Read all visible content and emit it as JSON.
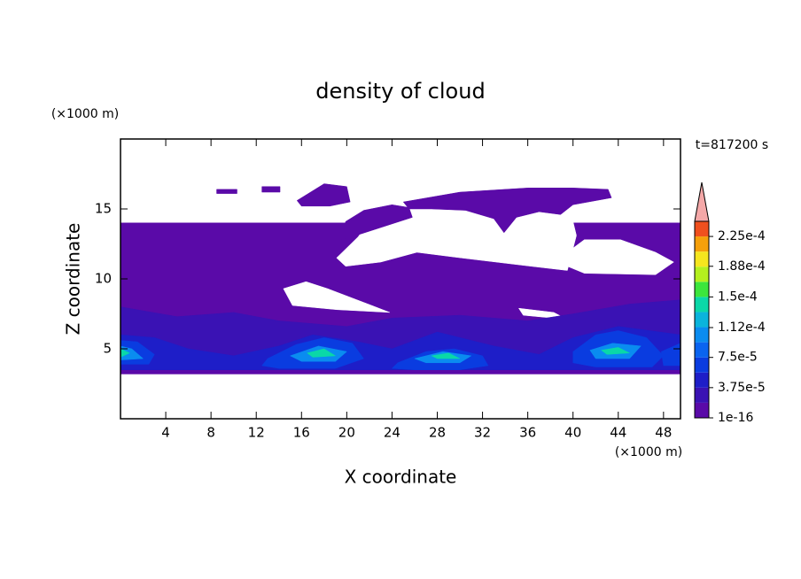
{
  "chart_data": {
    "type": "contour",
    "title": "density of cloud",
    "xlabel": "X coordinate",
    "ylabel": "Z coordinate",
    "xunit": "(×1000 m)",
    "yunit": "(×1000 m)",
    "time_label": "t=817200 s",
    "xlim": [
      0,
      49.5
    ],
    "ylim": [
      0,
      20
    ],
    "xticks": [
      4,
      8,
      12,
      16,
      20,
      24,
      28,
      32,
      36,
      40,
      44,
      48
    ],
    "yticks": [
      5,
      10,
      15
    ],
    "background": "#ffffff",
    "colorbar": {
      "levels": [
        1e-16,
        1.875e-05,
        3.75e-05,
        5.625e-05,
        7.5e-05,
        9.375e-05,
        0.0001125,
        0.00013125,
        0.00015,
        0.00016875,
        0.0001875,
        0.00020625,
        0.000225,
        0.00024375
      ],
      "colors": [
        "#5a0aa8",
        "#3a12b4",
        "#1e1ec8",
        "#0a3ce0",
        "#0a64f0",
        "#0a8cf0",
        "#0ab4dc",
        "#0ad8a8",
        "#3ce63c",
        "#b4f01e",
        "#f5e61e",
        "#f5a00a",
        "#f0501e"
      ],
      "extend_color": "#f4a8a8",
      "ticks": [
        {
          "value": 1e-16,
          "label": "1e-16"
        },
        {
          "value": 3.75e-05,
          "label": "3.75e-5"
        },
        {
          "value": 7.5e-05,
          "label": "7.5e-5"
        },
        {
          "value": 0.000112,
          "label": "1.12e-4"
        },
        {
          "value": 0.00015,
          "label": "1.5e-4"
        },
        {
          "value": 0.000188,
          "label": "1.88e-4"
        },
        {
          "value": 0.000225,
          "label": "2.25e-4"
        }
      ]
    },
    "regions": [
      {
        "value": 1e-16,
        "x": [
          0,
          49.5,
          49.5,
          0
        ],
        "z": [
          3.2,
          3.2,
          14,
          14
        ]
      },
      {
        "value": null,
        "x": [
          19.1,
          21,
          22,
          40,
          40.3,
          39.5,
          36.3,
          33.2,
          30.1,
          26.2,
          23,
          19.9
        ],
        "z": [
          11.5,
          13,
          14.1,
          14.1,
          13.1,
          10.6,
          10.9,
          11.2,
          11.5,
          11.9,
          11.2,
          10.9
        ]
      },
      {
        "value": null,
        "x": [
          14.4,
          16.4,
          18.3,
          22.2,
          23.8,
          19.1,
          15.2
        ],
        "z": [
          9.3,
          9.8,
          9.3,
          8.1,
          7.6,
          7.8,
          8.1
        ]
      },
      {
        "value": null,
        "x": [
          39.5,
          41,
          44.2,
          47.3,
          48.9,
          47.3,
          41,
          39.5
        ],
        "z": [
          11.9,
          12.8,
          12.8,
          11.9,
          11.2,
          10.3,
          10.4,
          10.9
        ]
      },
      {
        "value": null,
        "x": [
          35.2,
          38.3,
          39.5,
          35.6
        ],
        "z": [
          7.9,
          7.6,
          7.1,
          7.4
        ]
      },
      {
        "value": 1e-16,
        "x": [
          8.5,
          10.3,
          10.3,
          8.5
        ],
        "z": [
          16.1,
          16.1,
          16.4,
          16.4
        ]
      },
      {
        "value": 1e-16,
        "x": [
          12.5,
          14.1,
          14.1,
          12.5
        ],
        "z": [
          16.2,
          16.2,
          16.6,
          16.6
        ]
      },
      {
        "value": 1e-16,
        "x": [
          15.6,
          18,
          20,
          20.3,
          18.5,
          16
        ],
        "z": [
          15.6,
          16.8,
          16.6,
          15.5,
          15.2,
          15.2
        ]
      },
      {
        "value": 1e-16,
        "x": [
          19.9,
          21.5,
          24,
          25.5,
          25.8,
          23.5,
          21.2,
          19.5
        ],
        "z": [
          14.1,
          14.9,
          15.3,
          15.1,
          14.4,
          13.8,
          13.2,
          12.8
        ]
      },
      {
        "value": 1e-16,
        "x": [
          25,
          30,
          36,
          40,
          43.1,
          43.4,
          40,
          38.9,
          37,
          35,
          33.9,
          33,
          30.5,
          27.5,
          25.5
        ],
        "z": [
          15.5,
          16.2,
          16.5,
          16.5,
          16.4,
          15.8,
          15.3,
          14.6,
          14.8,
          14.4,
          13.3,
          14.3,
          14.9,
          15,
          15
        ]
      },
      {
        "value": 1.875e-05,
        "x": [
          0,
          5,
          10,
          14,
          20,
          24,
          30,
          36,
          40,
          45,
          49.5,
          49.5,
          0
        ],
        "z": [
          8,
          7.3,
          7.6,
          7,
          6.6,
          7.2,
          7.4,
          7,
          7.5,
          8.2,
          8.5,
          3.5,
          3.5
        ]
      },
      {
        "value": 3.75e-05,
        "x": [
          0,
          3,
          6,
          10,
          14,
          17,
          21,
          24,
          28,
          33,
          37,
          40,
          44,
          49.5,
          49.5,
          0
        ],
        "z": [
          6,
          5.8,
          5,
          4.5,
          5.2,
          6,
          5.5,
          5,
          6.2,
          5.2,
          4.6,
          5.8,
          6.6,
          6,
          3.5,
          3.5
        ]
      },
      {
        "value": 5.625e-05,
        "x": [
          0,
          1.5,
          3,
          2.5,
          0
        ],
        "z": [
          5.6,
          5.5,
          4.6,
          3.9,
          3.9
        ]
      },
      {
        "value": 5.625e-05,
        "x": [
          13,
          15.5,
          18,
          20.5,
          21.5,
          19,
          14,
          12.5
        ],
        "z": [
          4.3,
          5.3,
          5.8,
          5.4,
          4.3,
          3.6,
          3.6,
          3.8
        ]
      },
      {
        "value": 5.625e-05,
        "x": [
          24.5,
          27,
          29.5,
          32,
          32.5,
          30,
          26,
          24
        ],
        "z": [
          4,
          4.8,
          5,
          4.5,
          3.8,
          3.5,
          3.5,
          3.6
        ]
      },
      {
        "value": 5.625e-05,
        "x": [
          40,
          42,
          44,
          46.5,
          48,
          47,
          42,
          40
        ],
        "z": [
          4.8,
          6,
          6.3,
          5.8,
          4.5,
          3.7,
          3.7,
          4
        ]
      },
      {
        "value": 5.625e-05,
        "x": [
          47.8,
          49.5,
          49.5,
          48
        ],
        "z": [
          4.8,
          5.4,
          3.8,
          3.8
        ]
      },
      {
        "value": 9.375e-05,
        "x": [
          0,
          1,
          2,
          0
        ],
        "z": [
          5.2,
          5,
          4.3,
          4.2
        ]
      },
      {
        "value": 9.375e-05,
        "x": [
          15,
          17.5,
          20,
          19,
          16
        ],
        "z": [
          4.5,
          5.2,
          4.8,
          4.1,
          4.1
        ]
      },
      {
        "value": 9.375e-05,
        "x": [
          26,
          28.5,
          31,
          30,
          27
        ],
        "z": [
          4.3,
          4.8,
          4.5,
          4,
          4
        ]
      },
      {
        "value": 9.375e-05,
        "x": [
          41.5,
          43.5,
          46,
          45,
          42
        ],
        "z": [
          4.9,
          5.4,
          5.2,
          4.3,
          4.3
        ]
      },
      {
        "value": 0.00013125,
        "x": [
          0,
          0.8,
          0
        ],
        "z": [
          5,
          4.7,
          4.4
        ]
      },
      {
        "value": 0.00013125,
        "x": [
          16.5,
          18,
          19,
          17
        ],
        "z": [
          4.7,
          5,
          4.5,
          4.4
        ]
      },
      {
        "value": 0.00013125,
        "x": [
          27.5,
          29,
          30,
          28
        ],
        "z": [
          4.5,
          4.7,
          4.3,
          4.3
        ]
      },
      {
        "value": 0.00013125,
        "x": [
          42.5,
          44,
          45,
          43
        ],
        "z": [
          4.9,
          5.1,
          4.7,
          4.6
        ]
      }
    ]
  }
}
